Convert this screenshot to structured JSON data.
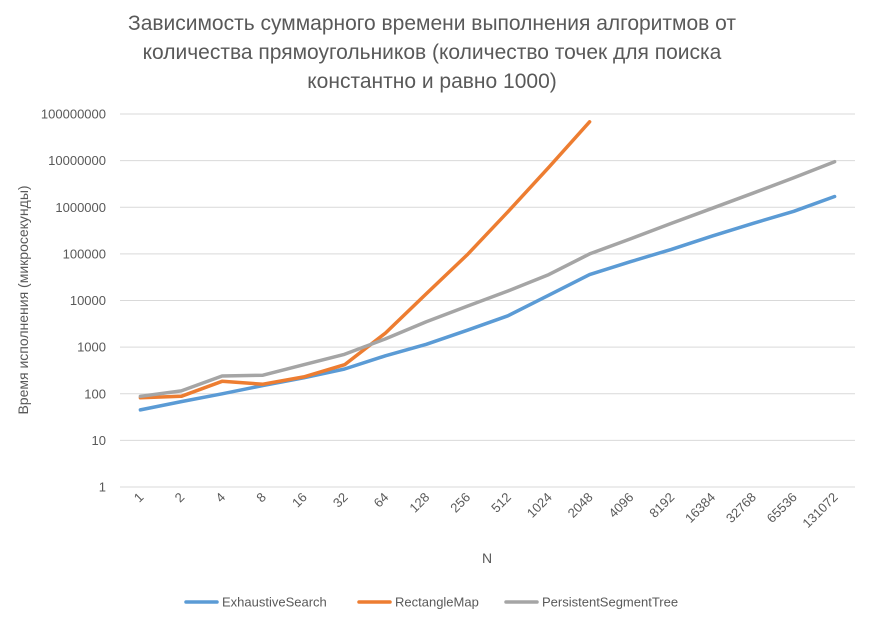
{
  "chart_data": {
    "type": "line",
    "title_lines": [
      "Зависимость суммарного времени выполнения алгоритмов от",
      "количества прямоугольников (количество точек для поиска",
      "константно и равно 1000)"
    ],
    "xlabel": "N",
    "ylabel": "Время исполнения (микросекунды)",
    "y_scale": "log",
    "ylim": [
      1,
      100000000
    ],
    "y_ticks": [
      "1",
      "10",
      "100",
      "1000",
      "10000",
      "100000",
      "1000000",
      "10000000",
      "100000000"
    ],
    "categories": [
      "1",
      "2",
      "4",
      "8",
      "16",
      "32",
      "64",
      "128",
      "256",
      "512",
      "1024",
      "2048",
      "4096",
      "8192",
      "16384",
      "32768",
      "65536",
      "131072"
    ],
    "grid": true,
    "legend_position": "bottom",
    "series": [
      {
        "name": "ExhaustiveSearch",
        "color": "#5B9BD5",
        "values": [
          45,
          68,
          100,
          150,
          220,
          340,
          650,
          1150,
          2300,
          4700,
          13000,
          36000,
          68000,
          125000,
          240000,
          450000,
          820000,
          1700000
        ]
      },
      {
        "name": "RectangleMap",
        "color": "#ED7D31",
        "values": [
          82,
          88,
          185,
          160,
          230,
          420,
          2000,
          14000,
          95000,
          800000,
          7200000,
          68000000,
          null,
          null,
          null,
          null,
          null,
          null
        ]
      },
      {
        "name": "PersistentSegmentTree",
        "color": "#A5A5A5",
        "values": [
          88,
          115,
          240,
          250,
          420,
          700,
          1500,
          3500,
          7500,
          16000,
          36000,
          100000,
          210000,
          450000,
          950000,
          2000000,
          4300000,
          9500000
        ]
      }
    ]
  }
}
